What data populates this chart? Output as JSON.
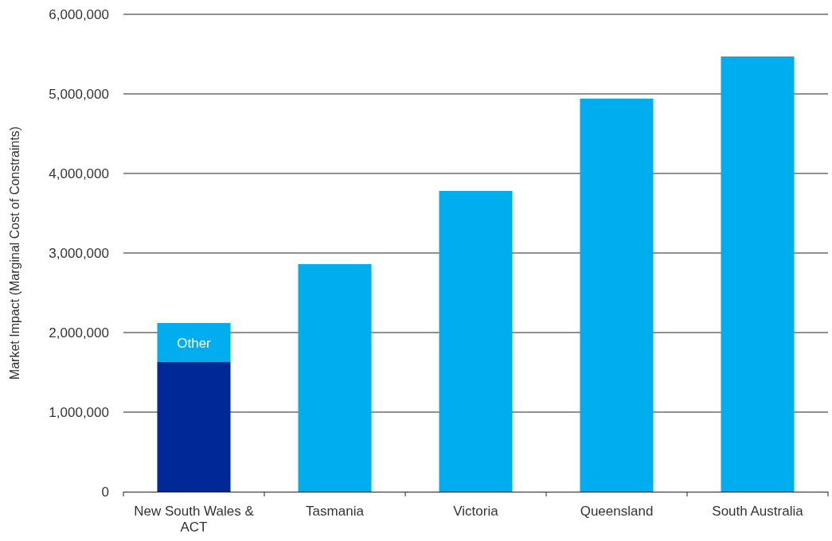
{
  "chart_data": {
    "type": "bar",
    "stacked": true,
    "ylabel": "Market Impact (Marginal Cost of Constraints)",
    "categories": [
      "New South Wales & ACT",
      "Tasmania",
      "Victoria",
      "Queensland",
      "South Australia"
    ],
    "series": [
      {
        "color": "#002896",
        "values": [
          1630000,
          null,
          null,
          null,
          null
        ]
      },
      {
        "color": "#00aeef",
        "values": [
          490000,
          2860000,
          3780000,
          4940000,
          5470000
        ]
      }
    ],
    "ylim": [
      0,
      6000000
    ],
    "yticks": [
      {
        "value": 0,
        "label": "0"
      },
      {
        "value": 1000000,
        "label": "1,000,000"
      },
      {
        "value": 2000000,
        "label": "2,000,000"
      },
      {
        "value": 3000000,
        "label": "3,000,000"
      },
      {
        "value": 4000000,
        "label": "4,000,000"
      },
      {
        "value": 5000000,
        "label": "5,000,000"
      },
      {
        "value": 6000000,
        "label": "6,000,000"
      }
    ],
    "grid": "y",
    "annotations": [
      "Other"
    ]
  }
}
